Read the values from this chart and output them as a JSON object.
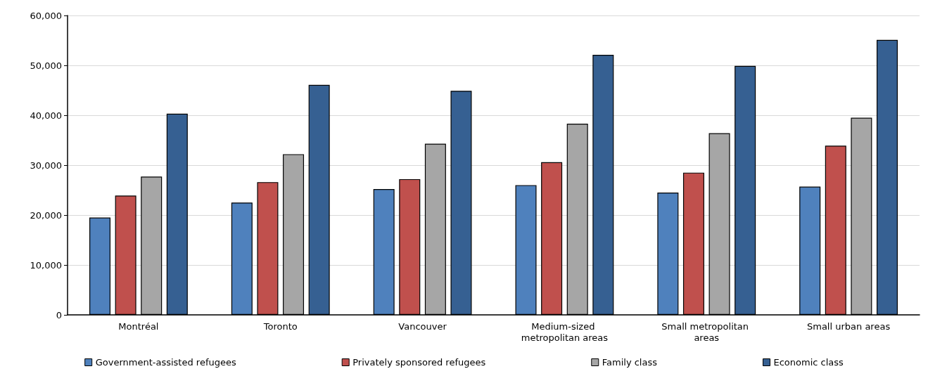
{
  "chart_data": {
    "type": "bar",
    "categories": [
      "Montréal",
      "Toronto",
      "Vancouver",
      "Medium-sized metropolitan areas",
      "Small metropolitan areas",
      "Small urban areas"
    ],
    "series": [
      {
        "name": "Government-assisted refugees",
        "color": "#4f81bd",
        "values": [
          19500,
          22500,
          25200,
          26000,
          24500,
          25700
        ]
      },
      {
        "name": "Privately sponsored refugees",
        "color": "#c0504d",
        "values": [
          23900,
          26600,
          27200,
          30600,
          28500,
          33900
        ]
      },
      {
        "name": "Family class",
        "color": "#a6a6a6",
        "values": [
          27700,
          32200,
          34300,
          38300,
          36400,
          39500
        ]
      },
      {
        "name": "Economic class",
        "color": "#366092",
        "values": [
          40300,
          46100,
          44900,
          52100,
          49900,
          55100
        ]
      }
    ],
    "ylim": [
      0,
      60000
    ],
    "yticks": [
      0,
      {
        "value": 10000,
        "label": "10,000"
      },
      {
        "value": 20000,
        "label": "20,000"
      },
      {
        "value": 30000,
        "label": "30,000"
      },
      {
        "value": 40000,
        "label": "40,000"
      },
      {
        "value": 50000,
        "label": "50,000"
      },
      {
        "value": 60000,
        "label": "60,000"
      }
    ],
    "grid": "y",
    "legend": "bottom"
  }
}
